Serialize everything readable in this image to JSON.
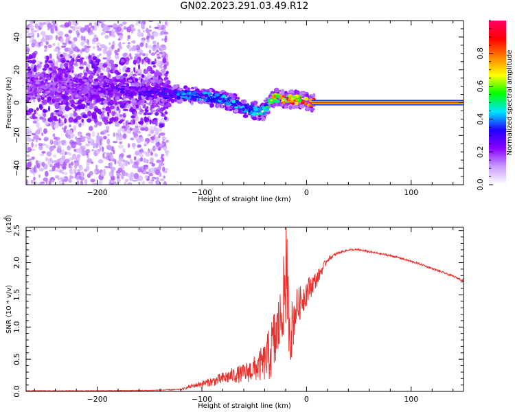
{
  "title": "GN02.2023.291.03.49.R12",
  "chart_data": [
    {
      "type": "heatmap",
      "xlabel": "Height of straight line (km)",
      "ylabel": "Frequency (Hz)",
      "xlim": [
        -268,
        150
      ],
      "ylim": [
        -50,
        50
      ],
      "x_ticks": [
        -200,
        -100,
        0,
        100
      ],
      "y_ticks": [
        -40,
        -20,
        0,
        20,
        40
      ],
      "colorbar": {
        "label": "Normalized spectral amplitude",
        "range": [
          0,
          1
        ],
        "ticks": [
          0.0,
          0.2,
          0.4,
          0.6,
          0.8
        ],
        "colors": [
          "#ffffff",
          "#c79bff",
          "#8a00ff",
          "#2000ff",
          "#00e5ff",
          "#00ff00",
          "#ffff00",
          "#ff8000",
          "#ff0000",
          "#ff0066"
        ]
      },
      "ridge": {
        "x": [
          -268,
          -240,
          -200,
          -160,
          -140,
          -120,
          -100,
          -80,
          -70,
          -60,
          -50,
          -40,
          -35,
          -30,
          -20,
          -10,
          0,
          5,
          150
        ],
        "frequency": [
          10,
          9,
          8,
          7,
          6,
          5,
          4,
          2,
          0,
          -3,
          -5,
          -5,
          0,
          3,
          2,
          2,
          1,
          0,
          0
        ],
        "amplitude": [
          0.2,
          0.2,
          0.25,
          0.3,
          0.35,
          0.4,
          0.45,
          0.45,
          0.45,
          0.45,
          0.45,
          0.5,
          0.7,
          0.8,
          0.85,
          0.85,
          0.9,
          0.9,
          0.9
        ]
      },
      "grid": false
    },
    {
      "type": "line",
      "xlabel": "Height of straight line (km)",
      "ylabel": "SNR (10 * v/v)",
      "y_multiplier": "(x10^4)",
      "xlim": [
        -268,
        150
      ],
      "ylim": [
        0,
        2.55
      ],
      "x_ticks": [
        -200,
        -100,
        0,
        100
      ],
      "y_ticks": [
        0.0,
        0.5,
        1.0,
        1.5,
        2.0,
        2.5
      ],
      "series": [
        {
          "color": "#e8312c",
          "x": [
            -268,
            -200,
            -150,
            -120,
            -110,
            -100,
            -90,
            -80,
            -70,
            -60,
            -50,
            -40,
            -35,
            -30,
            -25,
            -20,
            -15,
            -10,
            -5,
            0,
            10,
            20,
            30,
            40,
            50,
            60,
            70,
            80,
            90,
            100,
            110,
            120,
            130,
            140,
            150
          ],
          "y": [
            0.01,
            0.01,
            0.015,
            0.03,
            0.08,
            0.12,
            0.15,
            0.2,
            0.25,
            0.28,
            0.35,
            0.45,
            0.6,
            0.8,
            1.1,
            1.7,
            0.9,
            1.3,
            1.4,
            1.55,
            1.75,
            2.05,
            2.15,
            2.2,
            2.2,
            2.17,
            2.14,
            2.11,
            2.07,
            2.02,
            1.97,
            1.91,
            1.85,
            1.79,
            1.72
          ],
          "noise_amplitude": [
            0.005,
            0.005,
            0.006,
            0.01,
            0.03,
            0.05,
            0.07,
            0.1,
            0.12,
            0.15,
            0.2,
            0.3,
            0.45,
            0.55,
            0.5,
            0.7,
            0.5,
            0.3,
            0.25,
            0.22,
            0.12,
            0.04,
            0.02,
            0.015,
            0.015,
            0.015,
            0.015,
            0.015,
            0.015,
            0.015,
            0.015,
            0.015,
            0.015,
            0.015,
            0.015
          ]
        }
      ],
      "grid": false
    }
  ]
}
